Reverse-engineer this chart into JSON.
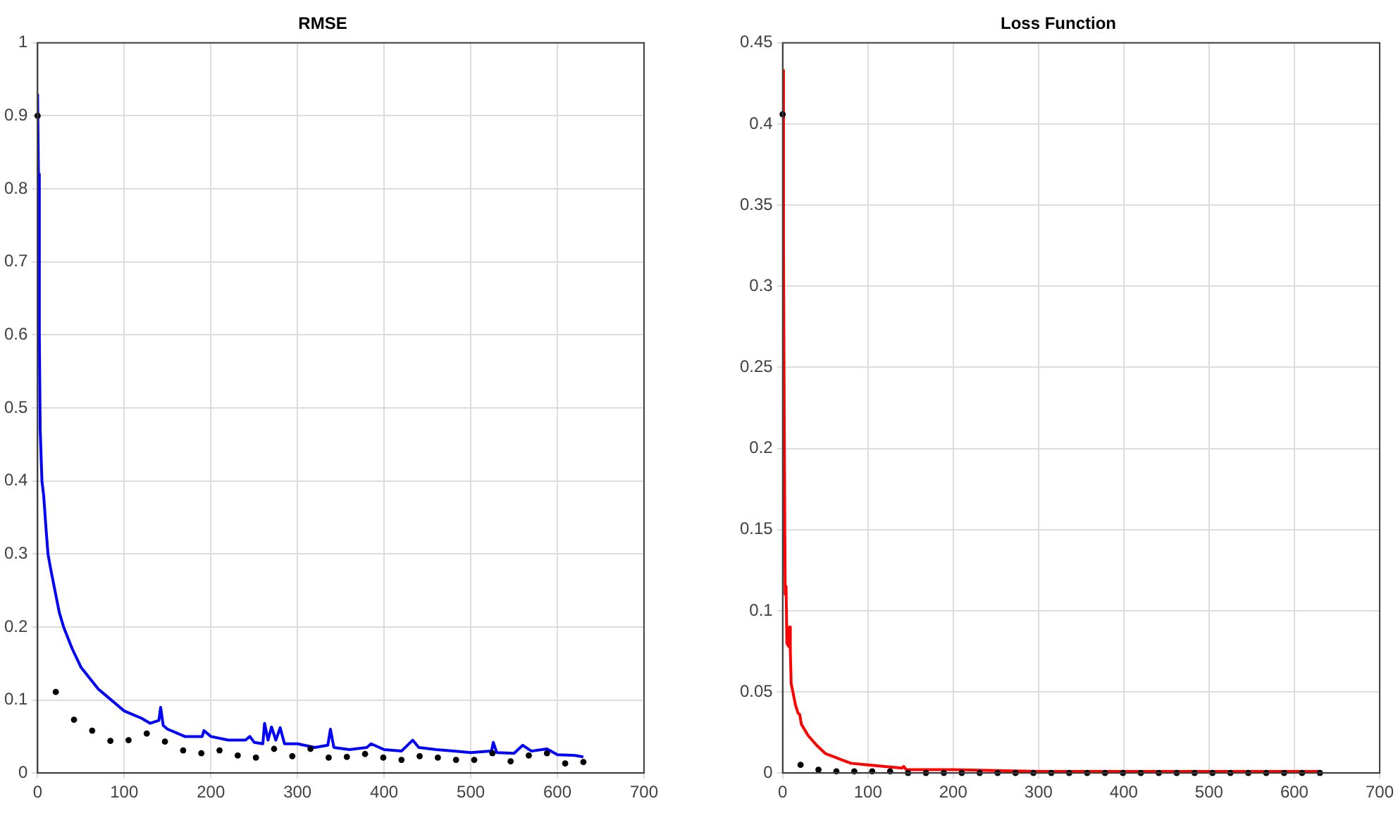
{
  "chart_data": [
    {
      "type": "line",
      "title": "RMSE",
      "xlim": [
        0,
        700
      ],
      "xticks": [
        0,
        100,
        200,
        300,
        400,
        500,
        600,
        700
      ],
      "ylim": [
        0,
        1
      ],
      "yticks": [
        0,
        0.1,
        0.2,
        0.3,
        0.4,
        0.5,
        0.6,
        0.7,
        0.8,
        0.9,
        1
      ],
      "grid": true,
      "series": [
        {
          "type": "line",
          "color": "#0000ff",
          "x": [
            0,
            1,
            2,
            3,
            5,
            7,
            10,
            12,
            15,
            20,
            25,
            30,
            40,
            50,
            60,
            70,
            80,
            90,
            100,
            110,
            120,
            130,
            140,
            142,
            145,
            150,
            160,
            170,
            190,
            192,
            200,
            220,
            240,
            245,
            250,
            260,
            262,
            266,
            270,
            275,
            280,
            285,
            300,
            320,
            335,
            338,
            342,
            360,
            380,
            385,
            400,
            420,
            433,
            440,
            460,
            480,
            500,
            524,
            526,
            530,
            550,
            560,
            570,
            588,
            600,
            620,
            630
          ],
          "values": [
            0.93,
            0.82,
            0.6,
            0.47,
            0.4,
            0.38,
            0.33,
            0.3,
            0.28,
            0.25,
            0.22,
            0.2,
            0.17,
            0.145,
            0.13,
            0.115,
            0.105,
            0.095,
            0.085,
            0.08,
            0.075,
            0.068,
            0.072,
            0.09,
            0.065,
            0.06,
            0.055,
            0.05,
            0.05,
            0.058,
            0.05,
            0.045,
            0.045,
            0.05,
            0.042,
            0.04,
            0.068,
            0.045,
            0.063,
            0.045,
            0.062,
            0.04,
            0.04,
            0.035,
            0.038,
            0.06,
            0.035,
            0.032,
            0.035,
            0.04,
            0.032,
            0.03,
            0.045,
            0.035,
            0.032,
            0.03,
            0.028,
            0.03,
            0.042,
            0.028,
            0.027,
            0.038,
            0.03,
            0.033,
            0.025,
            0.024,
            0.022
          ]
        },
        {
          "type": "scatter",
          "color": "#000000",
          "marker": "circle",
          "x": [
            0,
            21,
            42,
            63,
            84,
            105,
            126,
            147,
            168,
            189,
            210,
            231,
            252,
            273,
            294,
            315,
            336,
            357,
            378,
            399,
            420,
            441,
            462,
            483,
            504,
            525,
            546,
            567,
            588,
            609,
            630
          ],
          "values": [
            0.9,
            0.111,
            0.073,
            0.058,
            0.044,
            0.045,
            0.054,
            0.043,
            0.031,
            0.027,
            0.031,
            0.024,
            0.021,
            0.033,
            0.023,
            0.033,
            0.021,
            0.022,
            0.026,
            0.021,
            0.018,
            0.023,
            0.021,
            0.018,
            0.018,
            0.027,
            0.016,
            0.024,
            0.027,
            0.013,
            0.015
          ]
        }
      ]
    },
    {
      "type": "line",
      "title": "Loss Function",
      "xlim": [
        0,
        700
      ],
      "xticks": [
        0,
        100,
        200,
        300,
        400,
        500,
        600,
        700
      ],
      "ylim": [
        0,
        0.45
      ],
      "yticks": [
        0,
        0.05,
        0.1,
        0.15,
        0.2,
        0.25,
        0.3,
        0.35,
        0.4,
        0.45
      ],
      "grid": true,
      "series": [
        {
          "type": "line",
          "color": "#ff0000",
          "x": [
            0,
            1,
            2,
            3,
            4,
            5,
            7,
            8,
            9,
            10,
            12,
            15,
            18,
            20,
            22,
            30,
            40,
            50,
            60,
            70,
            80,
            100,
            120,
            140,
            142,
            145,
            200,
            300,
            400,
            500,
            630
          ],
          "values": [
            0.433,
            0.33,
            0.2,
            0.11,
            0.115,
            0.08,
            0.078,
            0.09,
            0.075,
            0.055,
            0.05,
            0.042,
            0.037,
            0.036,
            0.03,
            0.023,
            0.017,
            0.012,
            0.01,
            0.008,
            0.006,
            0.005,
            0.004,
            0.003,
            0.004,
            0.002,
            0.002,
            0.001,
            0.001,
            0.001,
            0.001
          ]
        },
        {
          "type": "scatter",
          "color": "#000000",
          "marker": "circle",
          "x": [
            0,
            21,
            42,
            63,
            84,
            105,
            126,
            147,
            168,
            189,
            210,
            231,
            252,
            273,
            294,
            315,
            336,
            357,
            378,
            399,
            420,
            441,
            462,
            483,
            504,
            525,
            546,
            567,
            588,
            609,
            630
          ],
          "values": [
            0.406,
            0.005,
            0.002,
            0.001,
            0.001,
            0.001,
            0.001,
            0,
            0,
            0,
            0,
            0,
            0,
            0,
            0,
            0,
            0,
            0,
            0,
            0,
            0,
            0,
            0,
            0,
            0,
            0,
            0,
            0,
            0,
            0,
            0
          ]
        }
      ]
    }
  ]
}
